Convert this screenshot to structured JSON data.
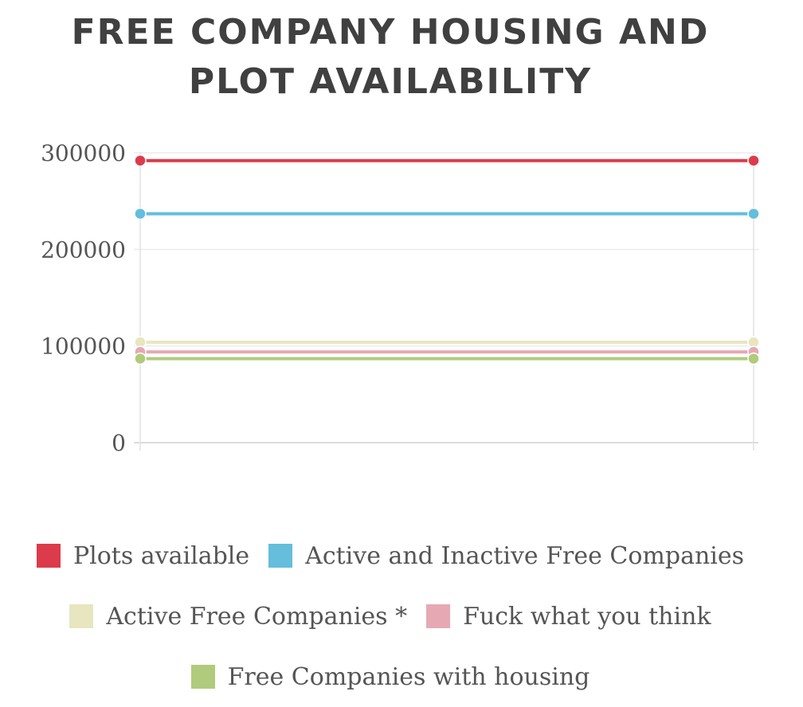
{
  "chart_data": {
    "type": "line",
    "title": [
      "FREE COMPANY HOUSING AND",
      "PLOT AVAILABILITY"
    ],
    "x": [
      0,
      1
    ],
    "ylim": [
      0,
      300000
    ],
    "yticks": [
      "300000",
      "200000",
      "100000",
      "0"
    ],
    "grid": true,
    "legend_position": "bottom",
    "series": [
      {
        "name": "Plots available",
        "values": [
          292000,
          292000
        ],
        "color": "#dc3b4b"
      },
      {
        "name": "Active and Inactive Free Companies",
        "values": [
          237000,
          237000
        ],
        "color": "#64bedc"
      },
      {
        "name": "Active Free Companies *",
        "values": [
          104000,
          104000
        ],
        "color": "#e8e6c0"
      },
      {
        "name": "Fuck what you think",
        "values": [
          94000,
          94000
        ],
        "color": "#e6a9b4"
      },
      {
        "name": "Free Companies with housing",
        "values": [
          87000,
          87000
        ],
        "color": "#b0cb7c"
      }
    ]
  }
}
